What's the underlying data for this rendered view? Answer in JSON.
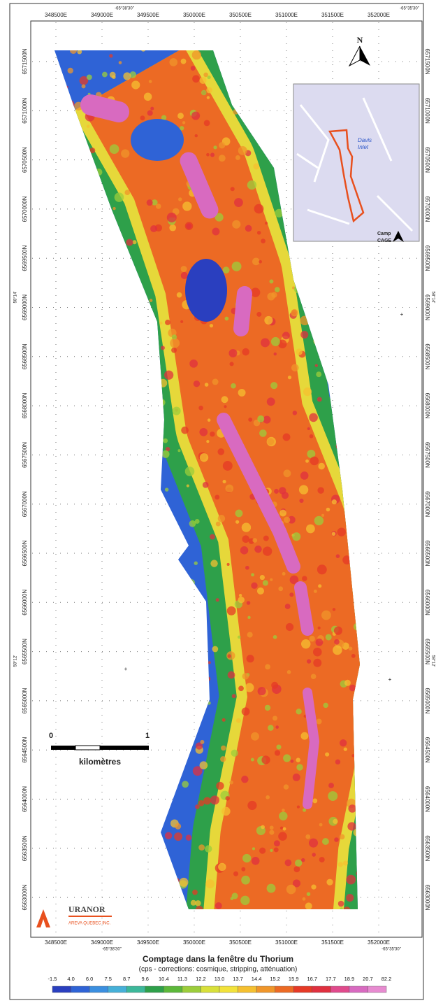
{
  "map": {
    "eastings_top": [
      "348500E",
      "349000E",
      "349500E",
      "350000E",
      "350500E",
      "351000E",
      "351500E",
      "352000E"
    ],
    "eastings_bottom": [
      "348500E",
      "349000E",
      "349500E",
      "350000E",
      "350500E",
      "351000E",
      "351500E",
      "352000E"
    ],
    "northings_left": [
      "6571500N",
      "6571000N",
      "6570500N",
      "6570000N",
      "6569500N",
      "6569000N",
      "6568500N",
      "6568000N",
      "6567500N",
      "6567000N",
      "6566500N",
      "6566000N",
      "6565500N",
      "6565000N",
      "6564500N",
      "6564000N",
      "6563500N",
      "6563000N"
    ],
    "northings_right": [
      "6571500N",
      "6571000N",
      "6570500N",
      "6570000N",
      "6569500N",
      "6569000N",
      "6568500N",
      "6568000N",
      "6567500N",
      "6567000N",
      "6566500N",
      "6566000N",
      "6565500N",
      "6565000N",
      "6564500N",
      "6564000N",
      "6563500N",
      "6563000N"
    ],
    "longitudes_top": [
      "-65°38'30\"",
      "-65°35'30\""
    ],
    "longitudes_bottom": [
      "-65°38'30\"",
      "-65°35'30\""
    ],
    "latitudes_left": [
      "58°14'",
      "58°12'"
    ],
    "latitudes_right": [
      "58°14'",
      "58°12'"
    ],
    "north_arrow": "N",
    "inset": {
      "place_lines": [
        "Davis",
        "Inlet"
      ],
      "camp_lines": [
        "Camp",
        "CAGE"
      ]
    },
    "scale_bar": {
      "start": "0",
      "end": "1",
      "unit": "kilomètres"
    }
  },
  "logo": {
    "name": "URANOR",
    "company": "AREVA QUEBEC INC."
  },
  "legend": {
    "title": "Comptage dans la fenêtre du Thorium",
    "subtitle": "(cps - corrections: cosmique, stripping, atténuation)",
    "labels": [
      "-1.5",
      "4.0",
      "6.0",
      "7.5",
      "8.7",
      "9.6",
      "10.4",
      "11.3",
      "12.2",
      "13.0",
      "13.7",
      "14.4",
      "15.2",
      "15.9",
      "16.7",
      "17.7",
      "18.9",
      "20.7",
      "82.2"
    ],
    "colors": [
      "#2a3fbf",
      "#2f63d6",
      "#3b8fe0",
      "#46b0d8",
      "#3cb89a",
      "#2ea04a",
      "#5cb83a",
      "#9ccd3b",
      "#d8e03a",
      "#f2e23a",
      "#f5c030",
      "#f0962a",
      "#ec6a24",
      "#e63a26",
      "#e0303f",
      "#e04a8c",
      "#d86ac0",
      "#e78bd0"
    ]
  }
}
